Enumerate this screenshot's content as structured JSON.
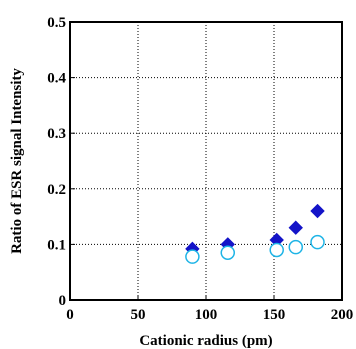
{
  "chart_data": {
    "type": "scatter",
    "title": "",
    "xlabel": "Cationic radius (pm)",
    "ylabel": "Ratio of ESR signal Intensity",
    "xlim": [
      0,
      200
    ],
    "ylim": [
      0,
      0.5
    ],
    "x_ticks": [
      0,
      50,
      100,
      150,
      200
    ],
    "y_ticks": [
      0,
      0.1,
      0.2,
      0.3,
      0.4,
      0.5
    ],
    "x_tick_labels": [
      "0",
      "50",
      "100",
      "150",
      "200"
    ],
    "y_tick_labels": [
      "0",
      "0.1",
      "0.2",
      "0.3",
      "0.4",
      "0.5"
    ],
    "grid": true,
    "legend": "none",
    "series": [
      {
        "marker": "filled-diamond",
        "color": "#1414c8",
        "points": [
          [
            90,
            0.092
          ],
          [
            116,
            0.1
          ],
          [
            152,
            0.108
          ],
          [
            166,
            0.13
          ],
          [
            182,
            0.16
          ]
        ]
      },
      {
        "marker": "open-circle",
        "color": "#1eb4e6",
        "points": [
          [
            90,
            0.078
          ],
          [
            116,
            0.085
          ],
          [
            152,
            0.09
          ],
          [
            166,
            0.095
          ],
          [
            182,
            0.104
          ]
        ]
      }
    ]
  }
}
